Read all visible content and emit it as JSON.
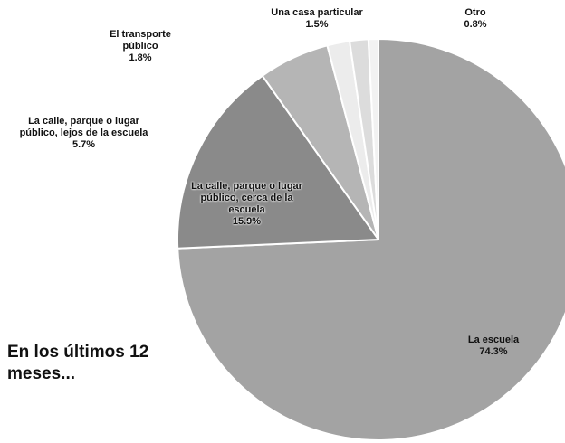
{
  "chart_data": {
    "type": "pie",
    "categories": [
      "La escuela",
      "La calle, parque o lugar público, cerca de la escuela",
      "La calle, parque o lugar público, lejos de la escuela",
      "El transporte público",
      "Una casa particular",
      "Otro"
    ],
    "values": [
      74.3,
      15.9,
      5.7,
      1.8,
      1.5,
      0.8
    ],
    "value_labels": [
      "74.3%",
      "15.9%",
      "5.7%",
      "1.8%",
      "1.5%",
      "0.8%"
    ],
    "colors": [
      "#a3a3a3",
      "#8a8a8a",
      "#b5b5b5",
      "#ececec",
      "#dcdcdc",
      "#f2f2f2"
    ],
    "annotation": "En los últimos 12 meses..."
  }
}
